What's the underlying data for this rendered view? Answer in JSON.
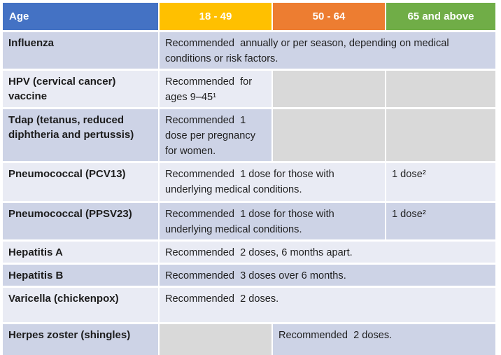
{
  "page": {
    "background_color": "#FFFFFF"
  },
  "table": {
    "header": {
      "row_label": "Age",
      "age_groups": [
        "18 - 49",
        "50 - 64",
        "65 and above"
      ]
    },
    "colors": {
      "header_age_bg": "#4472C4",
      "header_18_49_bg": "#FFC000",
      "header_50_64_bg": "#ED7D31",
      "header_65_above_bg": "#70AD47",
      "row_band_dark": "#CDD3E6",
      "row_band_light": "#E9EBF4",
      "empty_cell_gray": "#D9D9D9",
      "header_text": "#FFFFFF",
      "body_text": "#1F1F1F"
    },
    "rows": [
      {
        "vaccine": "Influenza",
        "recommendation": "Recommended  annually or per season, depending on medical conditions or risk factors."
      },
      {
        "vaccine": "HPV (cervical cancer) vaccine",
        "recommendation": "Recommended  for ages 9–45¹"
      },
      {
        "vaccine": "Tdap (tetanus, reduced diphtheria and pertussis)",
        "recommendation": "Recommended  1 dose per pregnancy for women."
      },
      {
        "vaccine": "Pneumococcal (PCV13)",
        "recommendation": "Recommended  1 dose for those with underlying medical conditions.",
        "dose_65_above": "1 dose²"
      },
      {
        "vaccine": "Pneumococcal (PPSV23)",
        "recommendation": "Recommended  1 dose for those with underlying medical conditions.",
        "dose_65_above": "1 dose²"
      },
      {
        "vaccine": "Hepatitis A",
        "recommendation": "Recommended  2 doses, 6 months apart."
      },
      {
        "vaccine": "Hepatitis B",
        "recommendation": "Recommended  3 doses over 6 months."
      },
      {
        "vaccine": "Varicella (chickenpox)",
        "recommendation": "Recommended  2 doses."
      },
      {
        "vaccine": "Herpes zoster (shingles)",
        "recommendation": "Recommended  2 doses."
      }
    ]
  }
}
